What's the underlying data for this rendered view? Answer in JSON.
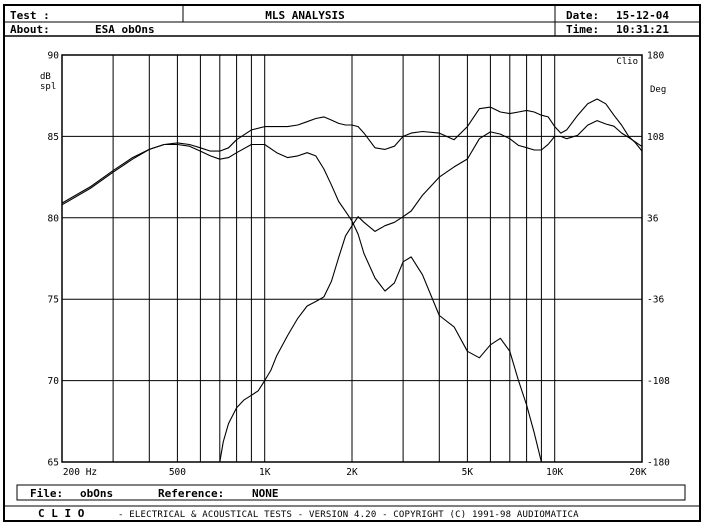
{
  "header": {
    "test_label": "Test :",
    "about_label": "About:",
    "about_value": "ESA obOns",
    "title": "MLS ANALYSIS",
    "date_label": "Date:",
    "date_value": "15-12-04",
    "time_label": "Time:",
    "time_value": "10:31:21"
  },
  "file_bar": {
    "file_label": "File:",
    "file_value": "obOns",
    "reference_label": "Reference:",
    "reference_value": "NONE"
  },
  "footer": {
    "brand": "C L I O",
    "text": "-  ELECTRICAL & ACOUSTICAL TESTS  -  VERSION 4.20  -  COPYRIGHT (C) 1991-98 AUDIOMATICA"
  },
  "chart_data": {
    "type": "line",
    "title": "MLS ANALYSIS",
    "xscale": "log",
    "xlim": [
      200,
      20000
    ],
    "x_ticks": [
      {
        "value": 200,
        "label": "200 Hz"
      },
      {
        "value": 500,
        "label": "500"
      },
      {
        "value": 1000,
        "label": "1K"
      },
      {
        "value": 2000,
        "label": "2K"
      },
      {
        "value": 5000,
        "label": "5K"
      },
      {
        "value": 10000,
        "label": "10K"
      },
      {
        "value": 20000,
        "label": "20K"
      }
    ],
    "ylabel_left": "dB spl",
    "ylim_left": [
      65,
      90
    ],
    "y_ticks_left": [
      "65",
      "70",
      "75",
      "80",
      "85",
      "90"
    ],
    "ylabel_right": "Deg",
    "right_corner_label": "Clio",
    "ylim_right": [
      -180,
      180
    ],
    "y_ticks_right": [
      "-180",
      "-108",
      "-36",
      "36",
      "108",
      "180"
    ],
    "grid": true,
    "series": [
      {
        "axis": "left",
        "x": [
          200,
          250,
          300,
          350,
          400,
          450,
          500,
          550,
          600,
          650,
          700,
          750,
          800,
          900,
          1000,
          1100,
          1200,
          1300,
          1400,
          1500,
          1600,
          1700,
          1800,
          1900,
          2000,
          2100,
          2200,
          2400,
          2600,
          2800,
          3000,
          3200,
          3500,
          4000,
          4500,
          5000,
          5500,
          6000,
          6500,
          7000,
          7500,
          8000,
          8500,
          9000,
          9500,
          10000,
          10500,
          11000,
          12000,
          13000,
          14000,
          15000,
          16000,
          17000,
          18000,
          19000,
          20000
        ],
        "values": [
          80.8,
          81.8,
          82.8,
          83.6,
          84.2,
          84.5,
          84.6,
          84.5,
          84.3,
          84.1,
          84.1,
          84.3,
          84.8,
          85.4,
          85.6,
          85.6,
          85.6,
          85.7,
          85.9,
          86.1,
          86.2,
          86.0,
          85.8,
          85.7,
          85.7,
          85.6,
          85.2,
          84.3,
          84.2,
          84.4,
          85.0,
          85.2,
          85.3,
          85.2,
          84.8,
          85.6,
          86.7,
          86.8,
          86.5,
          86.4,
          86.5,
          86.6,
          86.5,
          86.3,
          86.2,
          85.6,
          85.2,
          85.4,
          86.3,
          87.0,
          87.3,
          87.0,
          86.3,
          85.7,
          85.0,
          84.6,
          84.1
        ]
      },
      {
        "axis": "left",
        "x": [
          200,
          250,
          300,
          350,
          400,
          450,
          500,
          550,
          600,
          650,
          700,
          750,
          800,
          900,
          1000,
          1100,
          1200,
          1300,
          1400,
          1500,
          1600,
          1700,
          1800,
          1900,
          2000,
          2100,
          2200,
          2400,
          2600,
          2800,
          3000,
          3200,
          3500,
          4000,
          4500,
          5000,
          5500,
          6000,
          6500,
          7000,
          7500,
          8000,
          8500,
          9000
        ],
        "values": [
          80.9,
          81.9,
          82.9,
          83.7,
          84.2,
          84.5,
          84.5,
          84.4,
          84.1,
          83.8,
          83.6,
          83.7,
          84.0,
          84.5,
          84.5,
          84.0,
          83.7,
          83.8,
          84.0,
          83.8,
          83.0,
          82.0,
          81.0,
          80.4,
          79.8,
          79.0,
          77.8,
          76.3,
          75.5,
          76.0,
          77.3,
          77.6,
          76.5,
          74.0,
          73.3,
          71.8,
          71.4,
          72.2,
          72.6,
          71.8,
          70.0,
          68.5,
          66.8,
          65.0
        ]
      },
      {
        "axis": "right",
        "x": [
          700,
          720,
          750,
          800,
          850,
          900,
          950,
          1000,
          1050,
          1100,
          1200,
          1300,
          1400,
          1500,
          1600,
          1700,
          1800,
          1900,
          2000,
          2100,
          2200,
          2400,
          2600,
          2800,
          3000,
          3200,
          3500,
          4000,
          4500,
          5000,
          5500,
          6000,
          6500,
          7000,
          7500,
          8000,
          8500,
          9000,
          9500,
          10000,
          10500,
          11000,
          12000,
          13000,
          14000,
          15000,
          16000,
          17000,
          18000,
          19000,
          20000
        ],
        "values": [
          -180,
          -162,
          -146,
          -132,
          -125,
          -121,
          -117,
          -108,
          -99,
          -86,
          -68,
          -53,
          -42,
          -38,
          -34,
          -20,
          1,
          20,
          29,
          37,
          32,
          24,
          29,
          32,
          37,
          42,
          56,
          72,
          81,
          88,
          106,
          112,
          110,
          106,
          100,
          98,
          96,
          96,
          101,
          108,
          108,
          106,
          109,
          118,
          122,
          119,
          117,
          111,
          107,
          103,
          99
        ]
      }
    ]
  }
}
